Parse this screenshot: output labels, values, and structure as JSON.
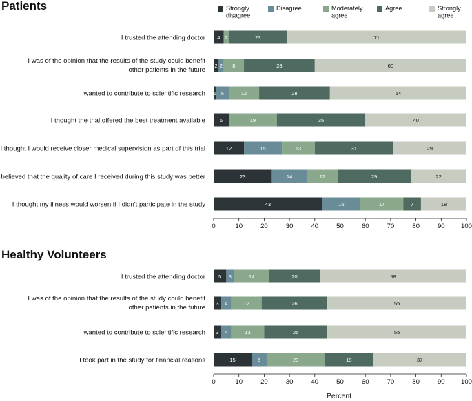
{
  "chart_data": {
    "type": "bar",
    "orientation": "horizontal-stacked",
    "xlabel": "Percent",
    "xlim": [
      0,
      100
    ],
    "ticks": [
      0,
      10,
      20,
      30,
      40,
      50,
      60,
      70,
      80,
      90,
      100
    ],
    "legend": {
      "placement": "top-right",
      "entries": [
        {
          "name": "Strongly\ndisagree",
          "color": "#2c3437"
        },
        {
          "name": "Disagree",
          "color": "#6a8c99"
        },
        {
          "name": "Moderately\nagree",
          "color": "#8aa88c"
        },
        {
          "name": "Agree",
          "color": "#4e6a61"
        },
        {
          "name": "Strongly\nagree",
          "color": "#c7ccc1"
        }
      ]
    },
    "panels": [
      {
        "title": "Patients",
        "rows": [
          {
            "label": "I trusted the attending doctor",
            "values": [
              4,
              0,
              2,
              23,
              71
            ]
          },
          {
            "label": "I was of the opinion that the results of the study could benefit\nother patients in the future",
            "values": [
              2,
              2,
              8,
              28,
              60
            ]
          },
          {
            "label": "I wanted to contribute to scientific research",
            "values": [
              1,
              5,
              12,
              28,
              54
            ]
          },
          {
            "label": "I thought the trial offered the best treatment available",
            "values": [
              6,
              0,
              19,
              35,
              40
            ]
          },
          {
            "label": "I thought I would receive closer medical supervision as part of this trial",
            "values": [
              12,
              15,
              13,
              31,
              29
            ]
          },
          {
            "label": "I believed that the quality of care I received during this study was better",
            "values": [
              23,
              14,
              12,
              29,
              22
            ]
          },
          {
            "label": "I thought my illness would worsen if I didn't participate in the study",
            "values": [
              43,
              15,
              17,
              7,
              18
            ]
          }
        ]
      },
      {
        "title": "Healthy Volunteers",
        "rows": [
          {
            "label": "I trusted the attending doctor",
            "values": [
              5,
              3,
              14,
              20,
              58
            ]
          },
          {
            "label": "I was of the opinion that the results of the study could benefit\nother patients in the future",
            "values": [
              3,
              4,
              12,
              26,
              55
            ]
          },
          {
            "label": "I wanted to contribute to scientific research",
            "values": [
              3,
              4,
              13,
              25,
              55
            ]
          },
          {
            "label": "I took part in the study for financial reasons",
            "values": [
              15,
              6,
              23,
              19,
              37
            ]
          }
        ]
      }
    ]
  }
}
